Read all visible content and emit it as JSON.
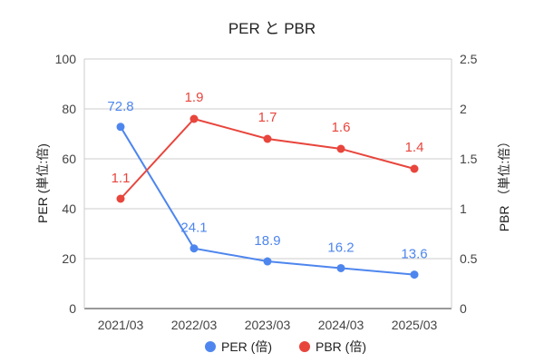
{
  "chart_data": {
    "type": "line",
    "title": "PER と PBR",
    "categories": [
      "2021/03",
      "2022/03",
      "2023/03",
      "2024/03",
      "2025/03"
    ],
    "y_left": {
      "label": "PER (単位:倍)",
      "range": [
        0,
        100
      ],
      "ticks": [
        "0",
        "20",
        "40",
        "60",
        "80",
        "100"
      ]
    },
    "y_right": {
      "label": "PBR （単位:倍）",
      "range": [
        0,
        2.5
      ],
      "ticks": [
        "0",
        "0.5",
        "1",
        "1.5",
        "2",
        "2.5"
      ]
    },
    "grid": true,
    "legend_position": "bottom",
    "series": [
      {
        "name": "PER (倍)",
        "axis": "left",
        "color": "#4e86ee",
        "values": [
          72.8,
          24.1,
          18.9,
          16.2,
          13.6
        ],
        "labels": [
          "72.8",
          "24.1",
          "18.9",
          "16.2",
          "13.6"
        ]
      },
      {
        "name": "PBR (倍)",
        "axis": "right",
        "color": "#e8453c",
        "values": [
          1.1,
          1.9,
          1.7,
          1.6,
          1.4
        ],
        "labels": [
          "1.1",
          "1.9",
          "1.7",
          "1.6",
          "1.4"
        ]
      }
    ]
  }
}
